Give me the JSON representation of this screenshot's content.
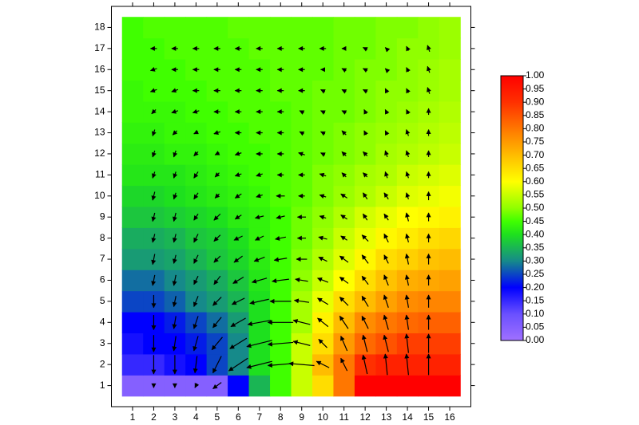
{
  "chart_data": {
    "type": "heatmap",
    "x": [
      1,
      2,
      3,
      4,
      5,
      6,
      7,
      8,
      9,
      10,
      11,
      12,
      13,
      14,
      15,
      16
    ],
    "y": [
      1,
      2,
      3,
      4,
      5,
      6,
      7,
      8,
      9,
      10,
      11,
      12,
      13,
      14,
      15,
      16,
      17,
      18
    ],
    "z": [
      [
        0.05,
        0.05,
        0.05,
        0.05,
        0.05,
        0.2,
        0.35,
        0.45,
        0.55,
        0.65,
        0.8,
        1,
        1,
        1,
        1,
        1
      ],
      [
        0.15,
        0.15,
        0.18,
        0.2,
        0.25,
        0.3,
        0.4,
        0.45,
        0.55,
        0.7,
        0.8,
        0.9,
        0.93,
        0.93,
        0.93,
        0.93
      ],
      [
        0.18,
        0.2,
        0.2,
        0.22,
        0.25,
        0.3,
        0.4,
        0.45,
        0.55,
        0.65,
        0.75,
        0.82,
        0.85,
        0.88,
        0.88,
        0.88
      ],
      [
        0.2,
        0.2,
        0.22,
        0.25,
        0.28,
        0.32,
        0.4,
        0.45,
        0.52,
        0.62,
        0.7,
        0.77,
        0.8,
        0.82,
        0.83,
        0.83
      ],
      [
        0.25,
        0.25,
        0.27,
        0.3,
        0.32,
        0.35,
        0.4,
        0.45,
        0.52,
        0.58,
        0.65,
        0.7,
        0.74,
        0.77,
        0.78,
        0.78
      ],
      [
        0.28,
        0.28,
        0.3,
        0.32,
        0.34,
        0.37,
        0.41,
        0.45,
        0.5,
        0.55,
        0.6,
        0.65,
        0.69,
        0.72,
        0.73,
        0.74
      ],
      [
        0.32,
        0.32,
        0.33,
        0.35,
        0.37,
        0.39,
        0.42,
        0.45,
        0.49,
        0.53,
        0.57,
        0.61,
        0.65,
        0.67,
        0.69,
        0.7
      ],
      [
        0.34,
        0.34,
        0.35,
        0.37,
        0.38,
        0.4,
        0.43,
        0.45,
        0.48,
        0.51,
        0.55,
        0.58,
        0.61,
        0.63,
        0.65,
        0.66
      ],
      [
        0.37,
        0.37,
        0.38,
        0.39,
        0.4,
        0.42,
        0.43,
        0.45,
        0.48,
        0.5,
        0.53,
        0.56,
        0.58,
        0.6,
        0.61,
        0.62
      ],
      [
        0.39,
        0.39,
        0.4,
        0.41,
        0.42,
        0.43,
        0.44,
        0.46,
        0.47,
        0.49,
        0.51,
        0.53,
        0.55,
        0.57,
        0.58,
        0.59
      ],
      [
        0.41,
        0.41,
        0.41,
        0.42,
        0.43,
        0.44,
        0.45,
        0.46,
        0.47,
        0.49,
        0.5,
        0.52,
        0.53,
        0.55,
        0.56,
        0.57
      ],
      [
        0.42,
        0.42,
        0.43,
        0.43,
        0.44,
        0.45,
        0.45,
        0.46,
        0.47,
        0.48,
        0.49,
        0.5,
        0.52,
        0.53,
        0.54,
        0.55
      ],
      [
        0.43,
        0.43,
        0.44,
        0.44,
        0.45,
        0.45,
        0.46,
        0.46,
        0.47,
        0.48,
        0.49,
        0.5,
        0.51,
        0.52,
        0.53,
        0.54
      ],
      [
        0.44,
        0.44,
        0.44,
        0.45,
        0.45,
        0.46,
        0.46,
        0.46,
        0.47,
        0.48,
        0.48,
        0.49,
        0.5,
        0.51,
        0.52,
        0.53
      ],
      [
        0.44,
        0.45,
        0.45,
        0.45,
        0.46,
        0.46,
        0.46,
        0.47,
        0.47,
        0.48,
        0.48,
        0.49,
        0.5,
        0.5,
        0.51,
        0.52
      ],
      [
        0.45,
        0.45,
        0.45,
        0.46,
        0.46,
        0.46,
        0.46,
        0.47,
        0.47,
        0.47,
        0.48,
        0.49,
        0.49,
        0.5,
        0.51,
        0.52
      ],
      [
        0.45,
        0.45,
        0.46,
        0.46,
        0.46,
        0.46,
        0.47,
        0.47,
        0.47,
        0.47,
        0.48,
        0.48,
        0.49,
        0.5,
        0.5,
        0.51
      ],
      [
        0.45,
        0.46,
        0.46,
        0.46,
        0.46,
        0.47,
        0.47,
        0.47,
        0.47,
        0.47,
        0.48,
        0.48,
        0.49,
        0.49,
        0.5,
        0.51
      ]
    ],
    "arrow_x": [
      2,
      3,
      4,
      5,
      6,
      7,
      8,
      9,
      10,
      11,
      12,
      13,
      14,
      15
    ],
    "arrow_y": [
      1,
      2,
      3,
      4,
      5,
      6,
      7,
      8,
      9,
      10,
      11,
      12,
      13,
      14,
      15,
      16,
      17
    ],
    "u": [
      [
        0,
        0,
        -0.1,
        -0.4,
        null,
        null,
        null,
        null,
        null,
        null,
        null,
        null,
        null,
        null
      ],
      [
        0,
        0,
        -0.1,
        -0.4,
        -0.9,
        -1.2,
        -1.2,
        -1.2,
        -0.6,
        -0.3,
        -0.2,
        -0.1,
        -0.1,
        0
      ],
      [
        0,
        -0.1,
        -0.2,
        -0.5,
        -0.8,
        -1.2,
        -1.2,
        -0.8,
        -0.4,
        -0.3,
        -0.2,
        -0.2,
        -0.1,
        0
      ],
      [
        0,
        -0.1,
        -0.2,
        -0.4,
        -0.7,
        -1.1,
        -1.2,
        -0.8,
        -0.5,
        -0.4,
        -0.3,
        -0.2,
        -0.1,
        0
      ],
      [
        0,
        -0.1,
        -0.2,
        -0.4,
        -0.6,
        -0.9,
        -1,
        -0.7,
        -0.5,
        -0.4,
        -0.3,
        -0.2,
        -0.1,
        0
      ],
      [
        -0.1,
        -0.1,
        -0.2,
        -0.3,
        -0.5,
        -0.7,
        -0.8,
        -0.6,
        -0.5,
        -0.4,
        -0.3,
        -0.2,
        -0.1,
        0
      ],
      [
        -0.1,
        -0.1,
        -0.2,
        -0.3,
        -0.4,
        -0.5,
        -0.6,
        -0.5,
        -0.4,
        -0.4,
        -0.3,
        -0.2,
        -0.1,
        0
      ],
      [
        -0.1,
        -0.1,
        -0.2,
        -0.3,
        -0.4,
        -0.4,
        -0.5,
        -0.4,
        -0.4,
        -0.3,
        -0.3,
        -0.2,
        -0.1,
        0
      ],
      [
        -0.1,
        -0.1,
        -0.2,
        -0.3,
        -0.3,
        -0.4,
        -0.4,
        -0.4,
        -0.3,
        -0.3,
        -0.2,
        -0.2,
        -0.1,
        0
      ],
      [
        -0.1,
        -0.1,
        -0.2,
        -0.2,
        -0.3,
        -0.3,
        -0.4,
        -0.3,
        -0.3,
        -0.3,
        -0.2,
        -0.2,
        -0.1,
        0
      ],
      [
        -0.1,
        -0.1,
        -0.2,
        -0.2,
        -0.3,
        -0.3,
        -0.3,
        -0.3,
        -0.3,
        -0.2,
        -0.2,
        -0.1,
        -0.1,
        0
      ],
      [
        -0.1,
        -0.1,
        -0.2,
        -0.2,
        -0.3,
        -0.3,
        -0.3,
        -0.3,
        -0.2,
        -0.2,
        -0.2,
        -0.1,
        -0.1,
        0
      ],
      [
        -0.1,
        -0.2,
        -0.2,
        -0.3,
        -0.3,
        -0.3,
        -0.3,
        -0.2,
        -0.2,
        -0.2,
        -0.1,
        -0.1,
        -0.1,
        0
      ],
      [
        -0.2,
        -0.3,
        -0.3,
        -0.3,
        -0.3,
        -0.3,
        -0.3,
        -0.2,
        -0.2,
        -0.2,
        -0.1,
        -0.1,
        -0.1,
        0
      ],
      [
        -0.3,
        -0.3,
        -0.3,
        -0.3,
        -0.3,
        -0.3,
        -0.3,
        -0.3,
        -0.2,
        -0.2,
        -0.2,
        -0.1,
        -0.1,
        -0.1
      ],
      [
        -0.3,
        -0.3,
        -0.3,
        -0.3,
        -0.3,
        -0.3,
        -0.3,
        -0.3,
        -0.2,
        -0.2,
        -0.2,
        -0.1,
        -0.1,
        -0.1
      ],
      [
        -0.3,
        -0.3,
        -0.3,
        -0.3,
        -0.3,
        -0.3,
        -0.3,
        -0.3,
        -0.3,
        -0.2,
        -0.2,
        -0.1,
        -0.1,
        -0.1
      ]
    ],
    "v": [
      [
        -0.2,
        -0.2,
        -0.2,
        -0.3,
        null,
        null,
        null,
        null,
        null,
        null,
        null,
        null,
        null,
        null
      ],
      [
        -0.9,
        -0.9,
        -0.8,
        -0.8,
        -0.6,
        -0.3,
        -0.1,
        0.1,
        0.3,
        0.6,
        0.9,
        1,
        1,
        1
      ],
      [
        -0.8,
        -0.7,
        -0.7,
        -0.6,
        -0.5,
        -0.3,
        -0.1,
        0.2,
        0.4,
        0.7,
        0.8,
        0.8,
        0.9,
        0.9
      ],
      [
        -0.7,
        -0.6,
        -0.6,
        -0.5,
        -0.4,
        -0.2,
        0,
        0.2,
        0.4,
        0.6,
        0.6,
        0.7,
        0.7,
        0.7
      ],
      [
        -0.6,
        -0.5,
        -0.5,
        -0.4,
        -0.3,
        -0.2,
        0,
        0.1,
        0.3,
        0.4,
        0.5,
        0.6,
        0.6,
        0.6
      ],
      [
        -0.5,
        -0.5,
        -0.4,
        -0.4,
        -0.3,
        -0.2,
        -0.1,
        0.1,
        0.2,
        0.3,
        0.4,
        0.5,
        0.5,
        0.5
      ],
      [
        -0.5,
        -0.4,
        -0.4,
        -0.3,
        -0.3,
        -0.2,
        -0.1,
        0,
        0.2,
        0.3,
        0.4,
        0.4,
        0.5,
        0.5
      ],
      [
        -0.4,
        -0.4,
        -0.4,
        -0.3,
        -0.2,
        -0.2,
        -0.1,
        0,
        0.1,
        0.2,
        0.3,
        0.4,
        0.4,
        0.4
      ],
      [
        -0.4,
        -0.4,
        -0.3,
        -0.3,
        -0.2,
        -0.1,
        -0.1,
        0,
        0.1,
        0.2,
        0.3,
        0.3,
        0.4,
        0.4
      ],
      [
        -0.4,
        -0.3,
        -0.3,
        -0.2,
        -0.2,
        -0.1,
        0,
        0,
        0.1,
        0.2,
        0.3,
        0.3,
        0.3,
        0.4
      ],
      [
        -0.3,
        -0.3,
        -0.3,
        -0.2,
        -0.1,
        -0.1,
        0,
        0,
        0.1,
        0.2,
        0.2,
        0.3,
        0.3,
        0.3
      ],
      [
        -0.3,
        -0.3,
        -0.2,
        -0.1,
        -0.1,
        0,
        0,
        0.1,
        0.1,
        0.2,
        0.2,
        0.3,
        0.3,
        0.3
      ],
      [
        -0.3,
        -0.2,
        -0.1,
        -0.1,
        0,
        0,
        0,
        0.1,
        0.1,
        0.2,
        0.2,
        0.2,
        0.3,
        0.3
      ],
      [
        -0.2,
        -0.1,
        -0.1,
        0,
        0,
        0,
        0,
        0.1,
        0.1,
        0.1,
        0.2,
        0.2,
        0.2,
        0.3
      ],
      [
        -0.1,
        -0.1,
        0,
        0,
        0,
        0,
        0,
        0,
        0.1,
        0.1,
        0.1,
        0.2,
        0.2,
        0.3
      ],
      [
        -0.1,
        0,
        0,
        0,
        0,
        0,
        0,
        0,
        0,
        0.1,
        0.1,
        0.1,
        0.2,
        0.3
      ],
      [
        0,
        0,
        0,
        0,
        0,
        0,
        0,
        0,
        0,
        0,
        0.1,
        0.1,
        0.2,
        0.3
      ]
    ],
    "arrow_color": "#000000",
    "xlim": [
      0,
      17
    ],
    "ylim": [
      0,
      19
    ],
    "xticks": [
      1,
      2,
      3,
      4,
      5,
      6,
      7,
      8,
      9,
      10,
      11,
      12,
      13,
      14,
      15,
      16
    ],
    "yticks": [
      1,
      2,
      3,
      4,
      5,
      6,
      7,
      8,
      9,
      10,
      11,
      12,
      13,
      14,
      15,
      16,
      17,
      18
    ],
    "colormap": [
      {
        "value": 0,
        "color": "#a070ff"
      },
      {
        "value": 0.1,
        "color": "#6a50ff"
      },
      {
        "value": 0.2,
        "color": "#0000ff"
      },
      {
        "value": 0.3,
        "color": "#168a8a"
      },
      {
        "value": 0.4,
        "color": "#1ee01e"
      },
      {
        "value": 0.45,
        "color": "#40ff00"
      },
      {
        "value": 0.5,
        "color": "#90ff00"
      },
      {
        "value": 0.6,
        "color": "#ffff00"
      },
      {
        "value": 0.75,
        "color": "#ff9a00"
      },
      {
        "value": 0.9,
        "color": "#ff3000"
      },
      {
        "value": 1,
        "color": "#ff0000"
      }
    ],
    "clim": [
      0,
      1
    ],
    "cticks": [
      {
        "value": 0,
        "label": "0.00"
      },
      {
        "value": 0.05,
        "label": "0.05"
      },
      {
        "value": 0.1,
        "label": "0.10"
      },
      {
        "value": 0.15,
        "label": "0.15"
      },
      {
        "value": 0.2,
        "label": "0.20"
      },
      {
        "value": 0.25,
        "label": "0.25"
      },
      {
        "value": 0.3,
        "label": "0.30"
      },
      {
        "value": 0.35,
        "label": "0.35"
      },
      {
        "value": 0.4,
        "label": "0.40"
      },
      {
        "value": 0.45,
        "label": "0.45"
      },
      {
        "value": 0.5,
        "label": "0.50"
      },
      {
        "value": 0.55,
        "label": "0.55"
      },
      {
        "value": 0.6,
        "label": "0.60"
      },
      {
        "value": 0.65,
        "label": "0.65"
      },
      {
        "value": 0.7,
        "label": "0.70"
      },
      {
        "value": 0.75,
        "label": "0.75"
      },
      {
        "value": 0.8,
        "label": "0.80"
      },
      {
        "value": 0.85,
        "label": "0.85"
      },
      {
        "value": 0.9,
        "label": "0.90"
      },
      {
        "value": 0.95,
        "label": "0.95"
      },
      {
        "value": 1,
        "label": "1.00"
      }
    ]
  }
}
